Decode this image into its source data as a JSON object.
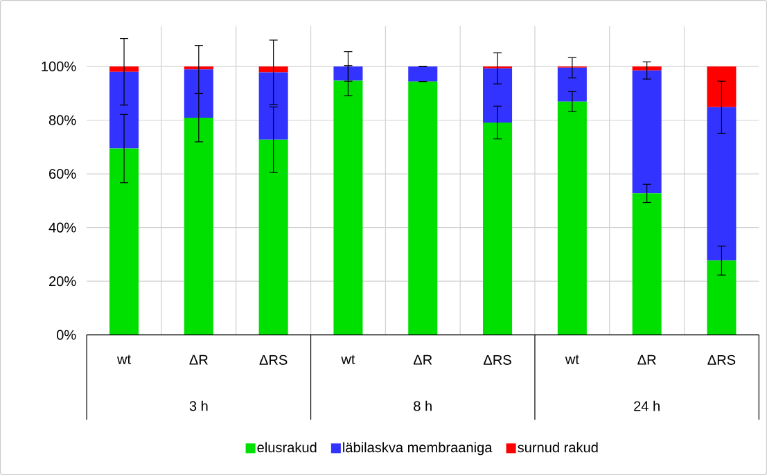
{
  "chart_data": {
    "type": "bar",
    "stacked": true,
    "categories": [
      "wt",
      "ΔR",
      "ΔRS",
      "wt",
      "ΔR",
      "ΔRS",
      "wt",
      "ΔR",
      "ΔRS"
    ],
    "series": [
      {
        "name": "elusrakud",
        "color": "#00e000",
        "values": [
          69.4,
          80.9,
          72.7,
          94.7,
          94.4,
          79.1,
          86.9,
          52.7,
          27.7
        ],
        "errors": [
          12.7,
          9.0,
          12.2,
          5.6,
          0,
          6.1,
          3.7,
          3.4,
          5.4
        ]
      },
      {
        "name": "läbilaskva membraaniga",
        "color": "#3333ff",
        "values": [
          28.6,
          18.0,
          25.1,
          5.3,
          5.6,
          20.2,
          12.6,
          45.8,
          57.1
        ],
        "errors": [
          12.4,
          8.9,
          12.0,
          5.5,
          0,
          5.8,
          3.8,
          3.2,
          9.7
        ]
      },
      {
        "name": "surnud rakud",
        "color": "#ff0000",
        "values": [
          2.0,
          1.1,
          2.2,
          0,
          0,
          0.7,
          0.5,
          1.5,
          15.2
        ]
      }
    ],
    "annotations": [
      "3 h",
      "8 h",
      "24 h"
    ],
    "ylim": [
      0,
      115
    ],
    "yticks": [
      {
        "value": 0,
        "label": "0%"
      },
      {
        "value": 20,
        "label": "20%"
      },
      {
        "value": 40,
        "label": "40%"
      },
      {
        "value": 60,
        "label": "60%"
      },
      {
        "value": 80,
        "label": "80%"
      },
      {
        "value": 100,
        "label": "100%"
      }
    ],
    "grid": true,
    "legend": "bottom"
  }
}
